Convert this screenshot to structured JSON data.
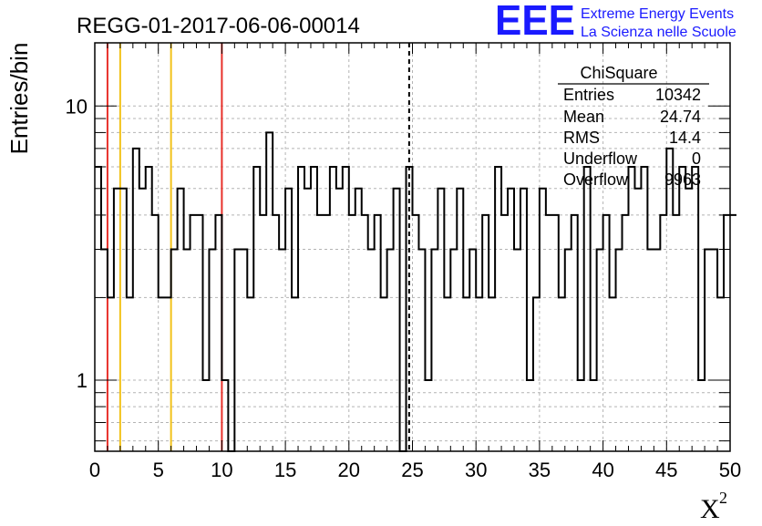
{
  "chart_data": {
    "type": "histogram",
    "title": "REGG-01-2017-06-06-00014",
    "xlabel": "X",
    "xlabel_superscript": "2",
    "ylabel": "Entries/bin",
    "x_scale": "linear",
    "y_scale": "log",
    "xlim": [
      0,
      50
    ],
    "ylim": [
      0.55,
      17
    ],
    "grid": true,
    "x_ticks": [
      0,
      5,
      10,
      15,
      20,
      25,
      30,
      35,
      40,
      45,
      50
    ],
    "y_tick_labels": [
      1,
      10
    ],
    "bin_width": 0.5,
    "bin_start": 0,
    "values": [
      6,
      3,
      2,
      5,
      5,
      2,
      7,
      5,
      6,
      4,
      2,
      2,
      3,
      5,
      3,
      4,
      4,
      1,
      3,
      4,
      1,
      0,
      3,
      3,
      2,
      6,
      4,
      8,
      4,
      3,
      5,
      2,
      6,
      5,
      6,
      4,
      4,
      6,
      5,
      6,
      4,
      5,
      4,
      3,
      4,
      2,
      3,
      5,
      0,
      6,
      4,
      3,
      1,
      3,
      5,
      2,
      3,
      5,
      2,
      3,
      2,
      4,
      2,
      6,
      4,
      5,
      3,
      5,
      1,
      2,
      5,
      4,
      4,
      2,
      3,
      4,
      1,
      6,
      1,
      3,
      4,
      2,
      3,
      4,
      6,
      5,
      6,
      3,
      3,
      4,
      7,
      4,
      6,
      5,
      6,
      1,
      3,
      3,
      2,
      4,
      4
    ],
    "vertical_lines": [
      {
        "x": 1,
        "color": "#e8312b",
        "style": "solid"
      },
      {
        "x": 2,
        "color": "#f2c21a",
        "style": "solid"
      },
      {
        "x": 6,
        "color": "#f2c21a",
        "style": "solid"
      },
      {
        "x": 10,
        "color": "#e8312b",
        "style": "solid"
      },
      {
        "x": 24.74,
        "color": "#000000",
        "style": "dashed"
      }
    ],
    "stats_box": {
      "title": "ChiSquare",
      "rows": [
        {
          "label": "Entries",
          "value": "10342"
        },
        {
          "label": "Mean",
          "value": "24.74"
        },
        {
          "label": "RMS",
          "value": "14.4"
        },
        {
          "label": "Underflow",
          "value": "0"
        },
        {
          "label": "Overflow",
          "value": "9963"
        }
      ]
    }
  },
  "logo": {
    "mark": "EEE",
    "line1": "Extreme Energy Events",
    "line2": "La Scienza nelle Scuole",
    "color": "#1a1aff"
  },
  "colors": {
    "grid": "#b4b4b4",
    "histogram": "#000000",
    "axis": "#000000"
  }
}
